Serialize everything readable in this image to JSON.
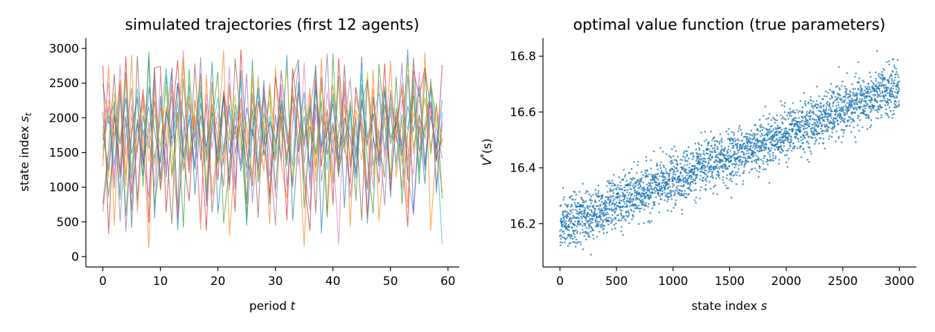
{
  "chart_data": [
    {
      "type": "line",
      "title": "simulated trajectories (first 12 agents)",
      "xlabel_text": "period ",
      "xlabel_var": "t",
      "ylabel_text": "state index ",
      "ylabel_var": "s",
      "ylabel_sub": "t",
      "xlim": [
        -2.95,
        61.95
      ],
      "ylim": [
        -150,
        3150
      ],
      "xticks": [
        0,
        10,
        20,
        30,
        40,
        50,
        60
      ],
      "yticks": [
        0,
        500,
        1000,
        1500,
        2000,
        2500,
        3000
      ],
      "grid": false,
      "legend": "none",
      "x": [
        0,
        1,
        2,
        3,
        4,
        5,
        6,
        7,
        8,
        9,
        10,
        11,
        12,
        13,
        14,
        15,
        16,
        17,
        18,
        19,
        20,
        21,
        22,
        23,
        24,
        25,
        26,
        27,
        28,
        29,
        30,
        31,
        32,
        33,
        34,
        35,
        36,
        37,
        38,
        39,
        40,
        41,
        42,
        43,
        44,
        45,
        46,
        47,
        48,
        49,
        50,
        51,
        52,
        53,
        54,
        55,
        56,
        57,
        58,
        59
      ],
      "series": [
        {
          "color": "#1f77b4",
          "values": [
            2490,
            1920,
            2240,
            830,
            2650,
            420,
            1980,
            1350,
            2860,
            560,
            2310,
            1140,
            2720,
            380,
            1790,
            2480,
            900,
            2040,
            1460,
            2810,
            620,
            1570,
            2190,
            980,
            2680,
            450,
            1830,
            1260,
            2540,
            760,
            2050,
            1380,
            2900,
            520,
            1680,
            2370,
            1050,
            2760,
            340,
            1940,
            1490,
            2600,
            700,
            2230,
            1130,
            2880,
            480,
            1720,
            1300,
            2450,
            860,
            2140,
            1590,
            2980,
            610,
            1880,
            1050,
            2560,
            920,
            2080
          ]
        },
        {
          "color": "#ff7f0e",
          "values": [
            1300,
            2760,
            450,
            2380,
            1020,
            2910,
            640,
            1830,
            120,
            2500,
            980,
            2160,
            1570,
            560,
            2830,
            1240,
            2040,
            390,
            2620,
            880,
            1710,
            2970,
            310,
            1460,
            2280,
            760,
            2590,
            1150,
            1950,
            470,
            2720,
            1360,
            840,
            2440,
            1670,
            150,
            2330,
            1080,
            2860,
            600,
            1890,
            1320,
            2530,
            430,
            2110,
            1760,
            980,
            2690,
            520,
            1470,
            2820,
            1140,
            2010,
            710,
            2460,
            1250,
            2940,
            380,
            1640,
            920
          ]
        },
        {
          "color": "#2ca02c",
          "values": [
            2090,
            870,
            1660,
            2520,
            590,
            1840,
            2270,
            1010,
            2950,
            730,
            1420,
            2610,
            1180,
            2080,
            420,
            2700,
            1550,
            2380,
            820,
            1930,
            2660,
            490,
            1290,
            2190,
            1740,
            560,
            2840,
            1070,
            1620,
            2420,
            970,
            2010,
            1310,
            2560,
            2840,
            700,
            1880,
            1470,
            2240,
            570,
            2920,
            1230,
            1680,
            2110,
            810,
            2480,
            1390,
            620,
            2770,
            1950,
            1120,
            2590,
            760,
            1780,
            2320,
            1050,
            2650,
            1480,
            2210,
            840
          ]
        },
        {
          "color": "#d62728",
          "values": [
            2750,
            330,
            2050,
            1220,
            2880,
            910,
            1590,
            2410,
            490,
            2720,
            2740,
            640,
            1940,
            2830,
            1460,
            800,
            2250,
            1690,
            380,
            2510,
            1100,
            2370,
            1850,
            650,
            2980,
            1510,
            1020,
            2240,
            1760,
            890,
            2590,
            1980,
            530,
            2710,
            2000,
            1090,
            380,
            2550,
            1300,
            2120,
            750,
            2860,
            1610,
            1050,
            2440,
            1810,
            600,
            2300,
            1380,
            2780,
            960,
            2020,
            1540,
            430,
            2680,
            2300,
            2720,
            2100,
            1370,
            2760
          ]
        },
        {
          "color": "#9467bd",
          "values": [
            1670,
            2160,
            990,
            2480,
            360,
            1780,
            2300,
            1450,
            860,
            2600,
            1120,
            1990,
            2700,
            530,
            1630,
            2210,
            1260,
            2870,
            730,
            1870,
            1490,
            2400,
            960,
            2090,
            1320,
            2640,
            780,
            1720,
            2300,
            1160,
            1590,
            2480,
            1010,
            1940,
            2770,
            1230,
            680,
            2200,
            1560,
            2920,
            1060,
            1780,
            2390,
            850,
            1510,
            2180,
            2550,
            1310,
            1820,
            740,
            2330,
            1650,
            2790,
            1180,
            620,
            2040,
            1700,
            2470,
            1030,
            1920
          ]
        },
        {
          "color": "#8c564b",
          "values": [
            760,
            1560,
            2630,
            1140,
            2030,
            670,
            2890,
            1310,
            1850,
            2240,
            960,
            1680,
            470,
            2500,
            2010,
            1210,
            2780,
            1390,
            2200,
            640,
            1570,
            2310,
            1040,
            2850,
            1920,
            1280,
            2130,
            560,
            2420,
            1730,
            1380,
            2680,
            1840,
            1000,
            2390,
            1590,
            2160,
            620,
            2580,
            1470,
            1930,
            1150,
            2760,
            1290,
            2000,
            520,
            2550,
            1740,
            1060,
            2190,
            1630,
            1900,
            2420,
            1110,
            2860,
            1520,
            1850,
            2230,
            1420,
            1700
          ]
        },
        {
          "color": "#e377c2",
          "values": [
            1790,
            2510,
            1120,
            2760,
            1450,
            2190,
            760,
            2320,
            1670,
            1010,
            2630,
            1280,
            2410,
            1830,
            2970,
            1230,
            1960,
            540,
            2350,
            1560,
            2090,
            1320,
            2740,
            1010,
            2280,
            1830,
            1180,
            2600,
            1460,
            1930,
            840,
            2440,
            1620,
            2160,
            1310,
            2790,
            980,
            2050,
            1500,
            2370,
            1640,
            170,
            2480,
            1780,
            1250,
            2210,
            1740,
            990,
            2550,
            1430,
            2080,
            1370,
            2260,
            1580,
            1180,
            2660,
            1350,
            2170,
            1540,
            2740
          ]
        },
        {
          "color": "#7f7f7f",
          "values": [
            650,
            1380,
            2190,
            510,
            1750,
            2430,
            830,
            2030,
            1560,
            2720,
            1130,
            1900,
            2310,
            700,
            2560,
            1380,
            1790,
            2640,
            920,
            2200,
            1680,
            1010,
            2490,
            1480,
            1950,
            780,
            2360,
            1230,
            2070,
            1520,
            450,
            2230,
            1760,
            1050,
            2520,
            1350,
            2060,
            2740,
            1080,
            1620,
            2350,
            1190,
            1870,
            2560,
            1460,
            2040,
            970,
            2290,
            1650,
            1140,
            2400,
            1820,
            980,
            2610,
            1570,
            2040,
            1240,
            2520,
            1850,
            1410
          ]
        },
        {
          "color": "#bcbd22",
          "values": [
            1890,
            1140,
            2360,
            1660,
            2590,
            1250,
            1910,
            2180,
            1370,
            2050,
            1590,
            2440,
            1120,
            1750,
            2880,
            1460,
            2210,
            1800,
            1060,
            2500,
            1330,
            2090,
            1680,
            2340,
            1530,
            1950,
            1100,
            2580,
            1730,
            2240,
            1390,
            1880,
            2720,
            1150,
            1610,
            2170,
            1800,
            1280,
            2430,
            1920,
            1090,
            2570,
            1500,
            2260,
            1750,
            1390,
            2660,
            1180,
            1900,
            2460,
            1620,
            2120,
            1320,
            2820,
            1480,
            2290,
            1690,
            2510,
            1990,
            1570
          ]
        },
        {
          "color": "#17becf",
          "values": [
            1550,
            2050,
            1320,
            2270,
            1890,
            1130,
            2420,
            1740,
            2160,
            1410,
            1960,
            2720,
            1590,
            2220,
            1250,
            2040,
            1720,
            2480,
            1370,
            1850,
            2280,
            1510,
            2110,
            1760,
            2520,
            1140,
            1900,
            2340,
            1630,
            2030,
            1470,
            2260,
            1810,
            1320,
            2490,
            1700,
            2220,
            1500,
            2040,
            1250,
            2330,
            1870,
            1600,
            2080,
            1430,
            2640,
            1720,
            1990,
            2360,
            1540,
            2170,
            1310,
            2050,
            1830,
            2560,
            1210,
            1940,
            2380,
            1680,
            180
          ]
        },
        {
          "color": "#1f77b4",
          "values": [
            1780,
            1240,
            2010,
            1620,
            2280,
            1480,
            1930,
            1170,
            2440,
            1800,
            1350,
            2090,
            1700,
            2500,
            1420,
            1990,
            1270,
            2210,
            1580,
            2080,
            1360,
            2290,
            1490,
            1890,
            1230,
            2150,
            1740,
            2430,
            1460,
            1950,
            1640,
            2180,
            1400,
            2320,
            1510,
            2020,
            1290,
            2410,
            1580,
            1810,
            2200,
            1400,
            2000,
            1700,
            1190,
            2270,
            1620,
            2060,
            1370,
            2380,
            1710,
            1930,
            1450,
            2170,
            1800,
            2460,
            1310,
            2030,
            1560,
            2260
          ]
        },
        {
          "color": "#ff7f0e",
          "values": [
            1410,
            2260,
            1730,
            2540,
            1180,
            2020,
            1500,
            2350,
            1870,
            1320,
            2150,
            1660,
            2480,
            1970,
            1240,
            2310,
            1790,
            2600,
            1410,
            2130,
            1900,
            1350,
            2400,
            1690,
            2070,
            1530,
            2280,
            1800,
            1230,
            2500,
            1600,
            2110,
            1420,
            2310,
            1970,
            1650,
            2430,
            1300,
            2040,
            1790,
            2480,
            1550,
            2190,
            1380,
            2300,
            1890,
            1600,
            2420,
            1460,
            1960,
            2210,
            1700,
            2500,
            1390,
            2070,
            1780,
            2290,
            1560,
            2140,
            1640
          ]
        }
      ]
    },
    {
      "type": "scatter",
      "title": "optimal value function (true parameters)",
      "xlabel_text": "state index ",
      "xlabel_var": "s",
      "ylabel_text": "V",
      "ylabel_sup": "*",
      "ylabel_arg": "(s)",
      "xlim": [
        -150,
        3150
      ],
      "ylim": [
        16.045,
        16.865
      ],
      "xticks": [
        0,
        500,
        1000,
        1500,
        2000,
        2500,
        3000
      ],
      "yticks": [
        16.2,
        16.4,
        16.6,
        16.8
      ],
      "yticklabels": [
        "16.2",
        "16.4",
        "16.6",
        "16.8"
      ],
      "grid": false,
      "legend": "none",
      "color": "#1f77b4",
      "n_points": 3000,
      "trend": {
        "x0": 0,
        "y0": 16.19,
        "x1": 3000,
        "y1": 16.69
      },
      "noise_sd": 0.045,
      "x_range": [
        0,
        2999
      ],
      "y_range": [
        16.07,
        16.82
      ]
    }
  ]
}
